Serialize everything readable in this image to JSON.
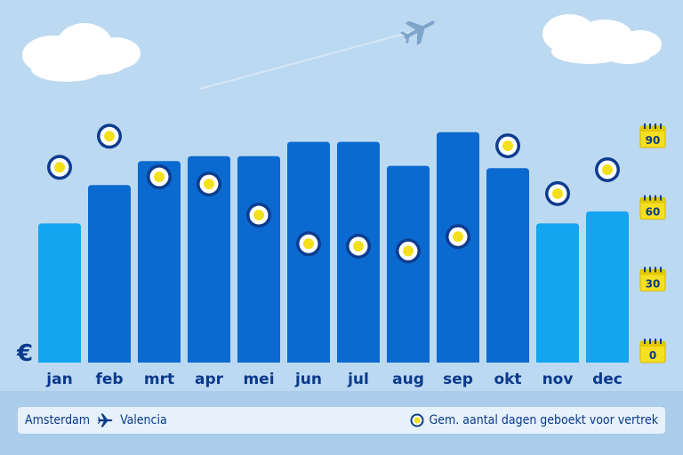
{
  "chart_data": {
    "type": "bar",
    "categories": [
      "jan",
      "feb",
      "mrt",
      "apr",
      "mei",
      "jun",
      "jul",
      "aug",
      "sep",
      "okt",
      "nov",
      "dec"
    ],
    "series": [
      {
        "values": [
          58,
          74,
          84,
          86,
          86,
          92,
          92,
          82,
          96,
          81,
          58,
          63
        ]
      },
      {
        "name": "Gem. aantal dagen geboekt voor vertrek",
        "values": [
          78,
          91,
          74,
          71,
          58,
          46,
          45,
          43,
          49,
          87,
          67,
          77
        ]
      }
    ],
    "bar_currency_symbol": "€",
    "right_axis": {
      "ticks": [
        "0",
        "30",
        "60",
        "90"
      ],
      "ylim": [
        0,
        100
      ]
    },
    "left_axis": {
      "ylim": [
        0,
        100
      ]
    },
    "highlight_months": [
      "jan",
      "nov",
      "dec"
    ],
    "colors": {
      "bar_dark": "#0a6ad0",
      "bar_light": "#14a5f0",
      "marker_ring": "#0d3c8f",
      "marker_fill": "#f4e01a",
      "tick_label": "#0a3a8c",
      "calendar": "#f6df20"
    }
  },
  "footer": {
    "origin": "Amsterdam",
    "destination": "Valencia",
    "legend_label": "Gem. aantal dagen geboekt voor vertrek"
  },
  "icons": {
    "route_icon": "airplane-icon",
    "legend_icon": "booking-marker-icon",
    "sky_plane": "airplane-icon",
    "tick_icon": "calendar-icon"
  }
}
